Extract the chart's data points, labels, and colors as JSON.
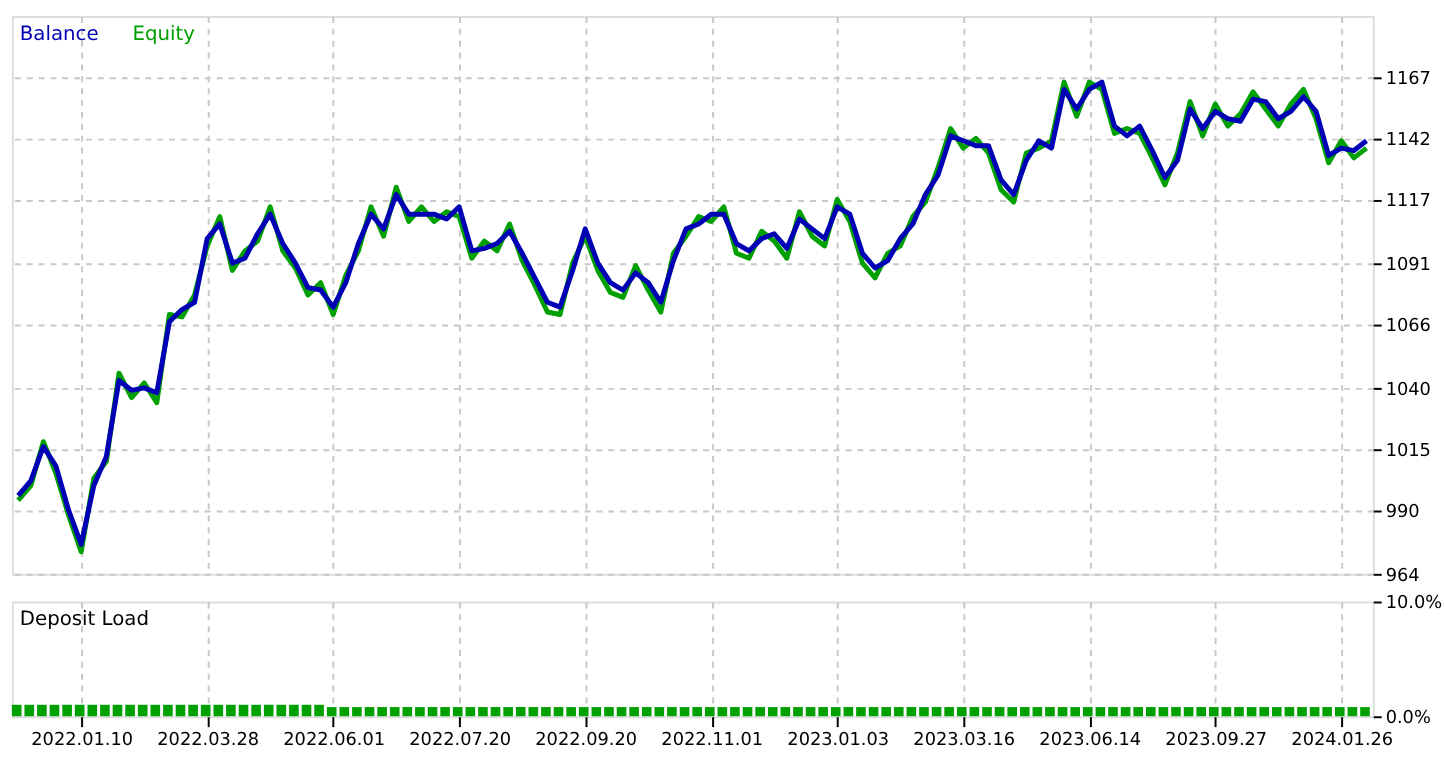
{
  "chart_data": [
    {
      "type": "line",
      "categories": [
        null,
        null,
        null,
        null,
        null,
        "2022.01.10",
        null,
        null,
        null,
        null,
        null,
        null,
        null,
        null,
        null,
        "2022.03.28",
        null,
        null,
        null,
        null,
        null,
        null,
        null,
        null,
        null,
        "2022.06.01",
        null,
        null,
        null,
        null,
        null,
        null,
        null,
        null,
        null,
        "2022.07.20",
        null,
        null,
        null,
        null,
        null,
        null,
        null,
        null,
        null,
        "2022.09.20",
        null,
        null,
        null,
        null,
        null,
        null,
        null,
        null,
        null,
        "2022.11.01",
        null,
        null,
        null,
        null,
        null,
        null,
        null,
        null,
        null,
        "2023.01.03",
        null,
        null,
        null,
        null,
        null,
        null,
        null,
        null,
        null,
        "2023.03.16",
        null,
        null,
        null,
        null,
        null,
        null,
        null,
        null,
        null,
        "2023.06.14",
        null,
        null,
        null,
        null,
        null,
        null,
        null,
        null,
        null,
        "2023.09.27",
        null,
        null,
        null,
        null,
        null,
        null,
        null,
        null,
        null,
        "2024.01.26",
        null,
        null
      ],
      "series": [
        {
          "name": "Balance",
          "color": "#0000b4",
          "values": [
            996,
            1002,
            1016,
            1008,
            990,
            976,
            1000,
            1012,
            1043,
            1039,
            1040,
            1038,
            1067,
            1072,
            1075,
            1101,
            1107,
            1091,
            1093,
            1103,
            1111,
            1099,
            1091,
            1081,
            1080,
            1073,
            1083,
            1099,
            1111,
            1105,
            1119,
            1111,
            1111,
            1111,
            1109,
            1114,
            1096,
            1097,
            1099,
            1104,
            1095,
            1085,
            1075,
            1073,
            1088,
            1105,
            1091,
            1083,
            1080,
            1087,
            1083,
            1075,
            1092,
            1105,
            1107,
            1111,
            1111,
            1099,
            1096,
            1101,
            1103,
            1097,
            1109,
            1105,
            1101,
            1114,
            1111,
            1095,
            1089,
            1092,
            1101,
            1107,
            1119,
            1127,
            1143,
            1141,
            1139,
            1139,
            1125,
            1119,
            1133,
            1141,
            1138,
            1162,
            1154,
            1162,
            1165,
            1147,
            1143,
            1147,
            1137,
            1126,
            1133,
            1154,
            1146,
            1153,
            1150,
            1149,
            1158,
            1157,
            1150,
            1153,
            1159,
            1153,
            1135,
            1138,
            1137,
            1141
          ]
        },
        {
          "name": "Equity",
          "color": "#00a000",
          "values": [
            994,
            1000,
            1018,
            1005,
            988,
            973,
            1003,
            1010,
            1046,
            1036,
            1042,
            1034,
            1070,
            1069,
            1078,
            1098,
            1110,
            1088,
            1096,
            1100,
            1114,
            1096,
            1089,
            1078,
            1083,
            1070,
            1086,
            1096,
            1114,
            1102,
            1122,
            1108,
            1114,
            1108,
            1112,
            1110,
            1093,
            1100,
            1096,
            1107,
            1092,
            1082,
            1071,
            1070,
            1091,
            1102,
            1088,
            1079,
            1077,
            1090,
            1080,
            1071,
            1095,
            1102,
            1110,
            1108,
            1114,
            1095,
            1093,
            1104,
            1100,
            1093,
            1112,
            1102,
            1098,
            1117,
            1108,
            1091,
            1085,
            1095,
            1098,
            1110,
            1116,
            1130,
            1146,
            1138,
            1142,
            1136,
            1121,
            1116,
            1136,
            1138,
            1141,
            1165,
            1151,
            1165,
            1162,
            1144,
            1146,
            1144,
            1134,
            1123,
            1136,
            1157,
            1143,
            1156,
            1147,
            1152,
            1161,
            1154,
            1147,
            1156,
            1162,
            1150,
            1132,
            1141,
            1134,
            1138
          ]
        }
      ],
      "ylim": [
        964,
        1192
      ],
      "yticks": [
        964,
        990,
        1015,
        1040,
        1066,
        1091,
        1117,
        1142,
        1167
      ],
      "grid": true,
      "legend": "top left",
      "tick_labels": "y"
    },
    {
      "type": "bar",
      "title": "Deposit Load",
      "categories": [
        null,
        null,
        null,
        null,
        null,
        "2022.01.10",
        null,
        null,
        null,
        null,
        null,
        null,
        null,
        null,
        null,
        "2022.03.28",
        null,
        null,
        null,
        null,
        null,
        null,
        null,
        null,
        null,
        "2022.06.01",
        null,
        null,
        null,
        null,
        null,
        null,
        null,
        null,
        null,
        "2022.07.20",
        null,
        null,
        null,
        null,
        null,
        null,
        null,
        null,
        null,
        "2022.09.20",
        null,
        null,
        null,
        null,
        null,
        null,
        null,
        null,
        null,
        "2022.11.01",
        null,
        null,
        null,
        null,
        null,
        null,
        null,
        null,
        null,
        "2023.01.03",
        null,
        null,
        null,
        null,
        null,
        null,
        null,
        null,
        null,
        "2023.03.16",
        null,
        null,
        null,
        null,
        null,
        null,
        null,
        null,
        null,
        "2023.06.14",
        null,
        null,
        null,
        null,
        null,
        null,
        null,
        null,
        null,
        "2023.09.27",
        null,
        null,
        null,
        null,
        null,
        null,
        null,
        null,
        null,
        "2024.01.26",
        null,
        null
      ],
      "values": [
        1.0,
        1.0,
        1.0,
        1.0,
        1.0,
        1.0,
        1.0,
        1.0,
        1.0,
        1.0,
        1.0,
        1.0,
        1.0,
        1.0,
        1.0,
        1.0,
        1.0,
        1.0,
        1.0,
        1.0,
        1.0,
        1.0,
        1.0,
        1.0,
        1.0,
        0.8,
        0.8,
        0.8,
        0.8,
        0.8,
        0.8,
        0.8,
        0.8,
        0.8,
        0.8,
        0.8,
        0.8,
        0.8,
        0.8,
        0.8,
        0.8,
        0.8,
        0.8,
        0.8,
        0.8,
        0.8,
        0.8,
        0.8,
        0.8,
        0.8,
        0.8,
        0.8,
        0.8,
        0.8,
        0.8,
        0.8,
        0.8,
        0.8,
        0.8,
        0.8,
        0.8,
        0.8,
        0.8,
        0.8,
        0.8,
        0.8,
        0.8,
        0.8,
        0.8,
        0.8,
        0.8,
        0.8,
        0.8,
        0.8,
        0.8,
        0.8,
        0.8,
        0.8,
        0.8,
        0.8,
        0.8,
        0.8,
        0.8,
        0.8,
        0.8,
        0.8,
        0.8,
        0.8,
        0.8,
        0.8,
        0.8,
        0.8,
        0.8,
        0.8,
        0.8,
        0.8,
        0.8,
        0.8,
        0.8,
        0.8,
        0.8,
        0.8,
        0.8,
        0.8,
        0.8,
        0.8,
        0.8,
        0.8
      ],
      "color": "#00a000",
      "ylim": [
        0,
        10
      ],
      "yticks": [
        {
          "value": 0,
          "label": "0.0%"
        },
        {
          "value": 10,
          "label": "10.0%"
        }
      ],
      "grid": "x"
    }
  ]
}
